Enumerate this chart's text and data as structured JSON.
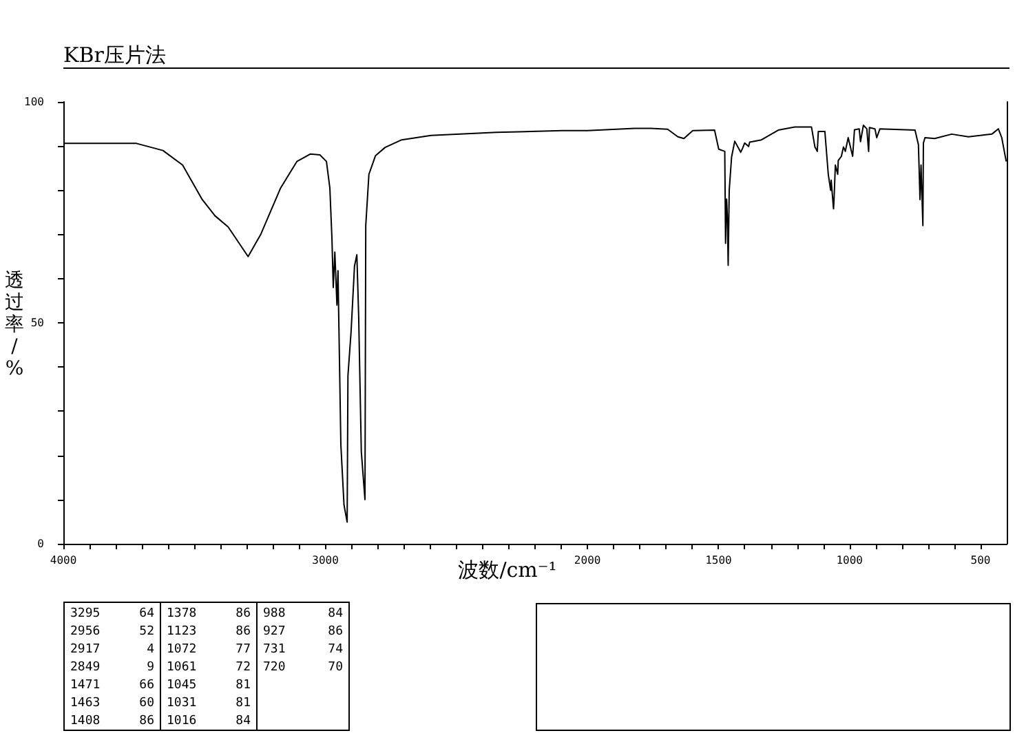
{
  "chart_data": {
    "type": "line",
    "title": "KBr压片法",
    "xlabel": "波数/cm⁻¹",
    "ylabel": "透过率/%",
    "color": "#000000",
    "x": [
      4000,
      3721,
      3620,
      3545,
      3470,
      3421,
      3371,
      3295,
      3246,
      3171,
      3109,
      3058,
      3021,
      2996,
      2983,
      2975,
      2970,
      2964,
      2956,
      2952,
      2941,
      2929,
      2917,
      2914,
      2902,
      2889,
      2880,
      2873,
      2863,
      2849,
      2846,
      2834,
      2809,
      2772,
      2709,
      2597,
      2347,
      2097,
      2000,
      1820,
      1757,
      1694,
      1655,
      1632,
      1598,
      1515,
      1499,
      1476,
      1473,
      1469,
      1466,
      1463,
      1459,
      1450,
      1438,
      1415,
      1408,
      1400,
      1385,
      1381,
      1336,
      1272,
      1209,
      1145,
      1132,
      1123,
      1119,
      1094,
      1081,
      1072,
      1070,
      1061,
      1059,
      1054,
      1045,
      1043,
      1031,
      1023,
      1016,
      1005,
      988,
      981,
      963,
      958,
      947,
      934,
      927,
      924,
      903,
      896,
      884,
      750,
      737,
      731,
      727,
      720,
      718,
      712,
      675,
      610,
      546,
      457,
      432,
      419,
      402
    ],
    "values": [
      90.6,
      90.6,
      89.0,
      85.7,
      77.9,
      74.2,
      71.7,
      65,
      70.1,
      80.5,
      86.5,
      88.2,
      88.0,
      86.5,
      80.5,
      69,
      58,
      66,
      54,
      61.8,
      22.4,
      8.8,
      4.9,
      38,
      48,
      62.8,
      65.4,
      51.4,
      20.9,
      10,
      72,
      83.6,
      87.8,
      89.7,
      91.4,
      92.4,
      93.1,
      93.5,
      93.5,
      94.0,
      94.0,
      93.8,
      92.1,
      91.7,
      93.5,
      93.6,
      89.3,
      88.8,
      68,
      78,
      74,
      63,
      80,
      87.5,
      91.1,
      88.6,
      89.5,
      90.7,
      89.9,
      90.9,
      91.4,
      93.6,
      94.3,
      94.3,
      89.8,
      88.8,
      93.3,
      93.3,
      83.6,
      80,
      82.3,
      75.8,
      77.9,
      85.7,
      83.6,
      86.7,
      87.7,
      89.8,
      88.8,
      91.9,
      87.7,
      93.7,
      93.9,
      91,
      94.7,
      93.9,
      88.8,
      94.2,
      93.9,
      91.9,
      93.9,
      93.6,
      90.3,
      77.9,
      85.7,
      72,
      90.7,
      91.9,
      91.7,
      92.7,
      92.1,
      92.7,
      93.9,
      91.9,
      86.5
    ],
    "xlim": [
      4000,
      400
    ],
    "ylim": [
      0,
      100
    ],
    "xticks": [
      4000,
      {
        "value": 3900,
        "label": null
      },
      {
        "value": 3800,
        "label": null
      },
      {
        "value": 3700,
        "label": null
      },
      {
        "value": 3600,
        "label": null
      },
      {
        "value": 3500,
        "label": null
      },
      {
        "value": 3400,
        "label": null
      },
      {
        "value": 3300,
        "label": null
      },
      {
        "value": 3200,
        "label": null
      },
      {
        "value": 3100,
        "label": null
      },
      3000,
      {
        "value": 2900,
        "label": null
      },
      {
        "value": 2800,
        "label": null
      },
      {
        "value": 2700,
        "label": null
      },
      {
        "value": 2600,
        "label": null
      },
      {
        "value": 2500,
        "label": null
      },
      {
        "value": 2400,
        "label": null
      },
      {
        "value": 2300,
        "label": null
      },
      {
        "value": 2200,
        "label": null
      },
      {
        "value": 2100,
        "label": null
      },
      2000,
      {
        "value": 1900,
        "label": null
      },
      {
        "value": 1800,
        "label": null
      },
      {
        "value": 1700,
        "label": null
      },
      {
        "value": 1600,
        "label": null
      },
      1500,
      {
        "value": 1400,
        "label": null
      },
      {
        "value": 1300,
        "label": null
      },
      {
        "value": 1200,
        "label": null
      },
      {
        "value": 1100,
        "label": null
      },
      1000,
      {
        "value": 900,
        "label": null
      },
      {
        "value": 800,
        "label": null
      },
      {
        "value": 700,
        "label": null
      },
      {
        "value": 600,
        "label": null
      },
      500
    ],
    "yticks": [
      0,
      {
        "value": 10,
        "label": null
      },
      {
        "value": 20,
        "label": null
      },
      {
        "value": 30,
        "label": null
      },
      {
        "value": 40,
        "label": null
      },
      50,
      {
        "value": 60,
        "label": null
      },
      {
        "value": 70,
        "label": null
      },
      {
        "value": 80,
        "label": null
      },
      {
        "value": 90,
        "label": null
      },
      100
    ],
    "annotations": [
      "3295 64",
      "2956 52",
      "2917 4",
      "2849 9",
      "1471 66",
      "1463 60",
      "1408 86",
      "1378 86",
      "1123 86",
      "1072 77",
      "1061 72",
      "1045 81",
      "1031 81",
      "1016 84",
      "988 84",
      "927 86",
      "731 74",
      "720 70"
    ]
  }
}
